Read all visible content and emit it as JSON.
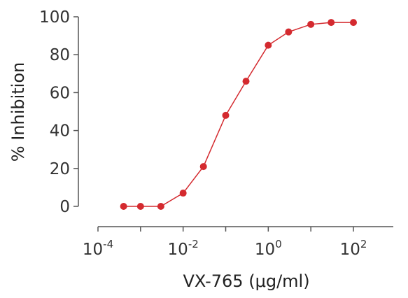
{
  "chart_data": {
    "type": "line",
    "xlabel": "VX-765 (μg/ml)",
    "ylabel": "% Inhibition",
    "x_scale": "log10",
    "xlim": [
      -4,
      2
    ],
    "ylim": [
      0,
      100
    ],
    "x_ticks": [
      {
        "base": "10",
        "exp": "-4",
        "value": -4
      },
      {
        "base": "10",
        "exp": "-2",
        "value": -2
      },
      {
        "base": "10",
        "exp": "0",
        "value": 0
      },
      {
        "base": "10",
        "exp": "2",
        "value": 2
      }
    ],
    "y_ticks": [
      "0",
      "20",
      "40",
      "60",
      "80",
      "100"
    ],
    "grid": false,
    "series": [
      {
        "color": "#d42a2f",
        "x": [
          0.0004,
          0.001,
          0.003,
          0.01,
          0.03,
          0.1,
          0.3,
          1,
          3,
          10,
          30,
          100
        ],
        "y": [
          0,
          0,
          0,
          7,
          21,
          48,
          66,
          85,
          92,
          96,
          97,
          97
        ]
      }
    ]
  }
}
